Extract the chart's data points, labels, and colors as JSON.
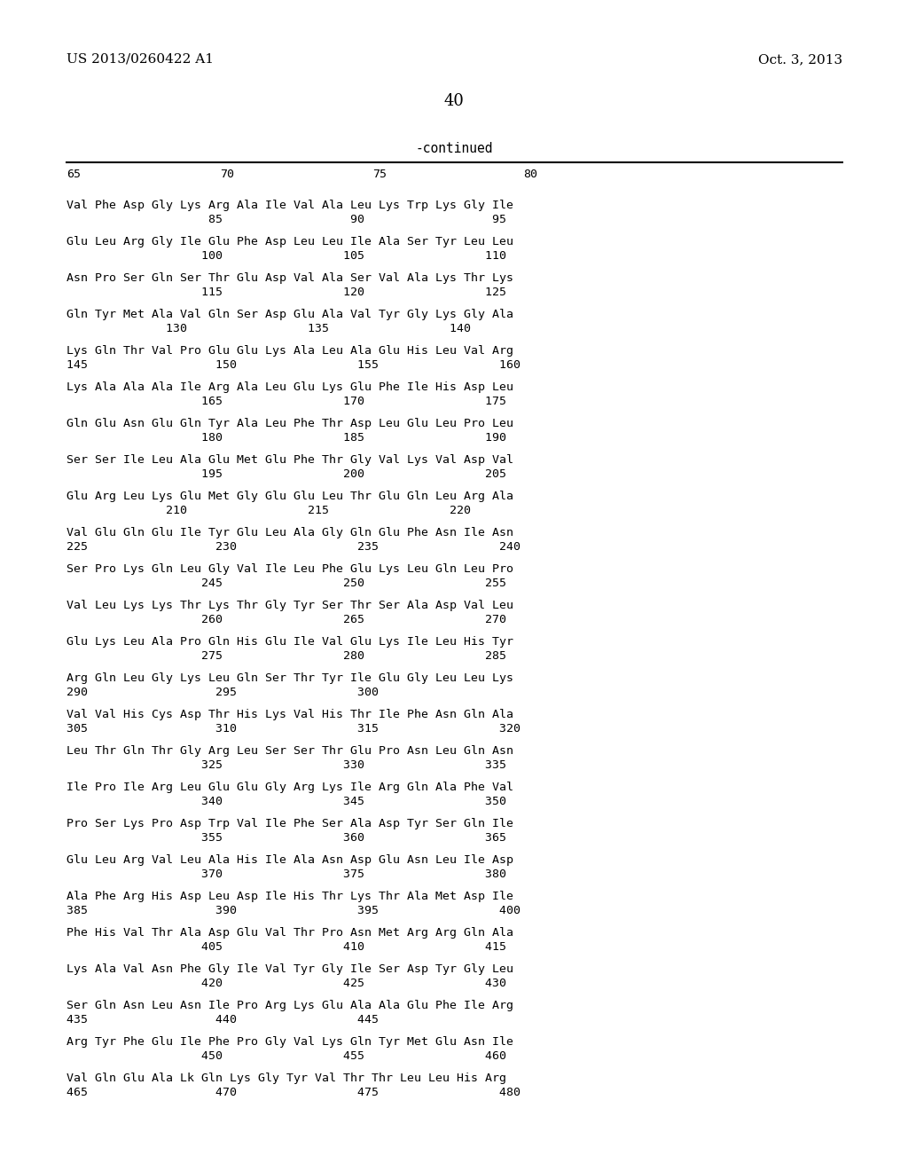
{
  "header_left": "US 2013/0260422 A1",
  "header_right": "Oct. 3, 2013",
  "page_number": "40",
  "continued_label": "-continued",
  "background_color": "#ffffff",
  "text_color": "#000000",
  "sequence_data": [
    [
      "Val Phe Asp Gly Lys Arg Ala Ile Val Ala Leu Lys Trp Lys Gly Ile",
      "                    85                  90                  95"
    ],
    [
      "Glu Leu Arg Gly Ile Glu Phe Asp Leu Leu Ile Ala Ser Tyr Leu Leu",
      "                   100                 105                 110"
    ],
    [
      "Asn Pro Ser Gln Ser Thr Glu Asp Val Ala Ser Val Ala Lys Thr Lys",
      "                   115                 120                 125"
    ],
    [
      "Gln Tyr Met Ala Val Gln Ser Asp Glu Ala Val Tyr Gly Lys Gly Ala",
      "              130                 135                 140"
    ],
    [
      "Lys Gln Thr Val Pro Glu Glu Lys Ala Leu Ala Glu His Leu Val Arg",
      "145                  150                 155                 160"
    ],
    [
      "Lys Ala Ala Ala Ile Arg Ala Leu Glu Lys Glu Phe Ile His Asp Leu",
      "                   165                 170                 175"
    ],
    [
      "Gln Glu Asn Glu Gln Tyr Ala Leu Phe Thr Asp Leu Glu Leu Pro Leu",
      "                   180                 185                 190"
    ],
    [
      "Ser Ser Ile Leu Ala Glu Met Glu Phe Thr Gly Val Lys Val Asp Val",
      "                   195                 200                 205"
    ],
    [
      "Glu Arg Leu Lys Glu Met Gly Glu Glu Leu Thr Glu Gln Leu Arg Ala",
      "              210                 215                 220"
    ],
    [
      "Val Glu Gln Glu Ile Tyr Glu Leu Ala Gly Gln Glu Phe Asn Ile Asn",
      "225                  230                 235                 240"
    ],
    [
      "Ser Pro Lys Gln Leu Gly Val Ile Leu Phe Glu Lys Leu Gln Leu Pro",
      "                   245                 250                 255"
    ],
    [
      "Val Leu Lys Lys Thr Lys Thr Gly Tyr Ser Thr Ser Ala Asp Val Leu",
      "                   260                 265                 270"
    ],
    [
      "Glu Lys Leu Ala Pro Gln His Glu Ile Val Glu Lys Ile Leu His Tyr",
      "                   275                 280                 285"
    ],
    [
      "Arg Gln Leu Gly Lys Leu Gln Ser Thr Tyr Ile Glu Gly Leu Leu Lys",
      "290                  295                 300"
    ],
    [
      "Val Val His Cys Asp Thr His Lys Val His Thr Ile Phe Asn Gln Ala",
      "305                  310                 315                 320"
    ],
    [
      "Leu Thr Gln Thr Gly Arg Leu Ser Ser Thr Glu Pro Asn Leu Gln Asn",
      "                   325                 330                 335"
    ],
    [
      "Ile Pro Ile Arg Leu Glu Glu Gly Arg Lys Ile Arg Gln Ala Phe Val",
      "                   340                 345                 350"
    ],
    [
      "Pro Ser Lys Pro Asp Trp Val Ile Phe Ser Ala Asp Tyr Ser Gln Ile",
      "                   355                 360                 365"
    ],
    [
      "Glu Leu Arg Val Leu Ala His Ile Ala Asn Asp Glu Asn Leu Ile Asp",
      "                   370                 375                 380"
    ],
    [
      "Ala Phe Arg His Asp Leu Asp Ile His Thr Lys Thr Ala Met Asp Ile",
      "385                  390                 395                 400"
    ],
    [
      "Phe His Val Thr Ala Asp Glu Val Thr Pro Asn Met Arg Arg Gln Ala",
      "                   405                 410                 415"
    ],
    [
      "Lys Ala Val Asn Phe Gly Ile Val Tyr Gly Ile Ser Asp Tyr Gly Leu",
      "                   420                 425                 430"
    ],
    [
      "Ser Gln Asn Leu Asn Ile Pro Arg Lys Glu Ala Ala Glu Phe Ile Arg",
      "435                  440                 445"
    ],
    [
      "Arg Tyr Phe Glu Ile Phe Pro Gly Val Lys Gln Tyr Met Glu Asn Ile",
      "                   450                 455                 460"
    ],
    [
      "Val Gln Glu Ala Lk Gln Lys Gly Tyr Val Thr Thr Leu Leu His Arg",
      "465                  470                 475                 480"
    ]
  ]
}
